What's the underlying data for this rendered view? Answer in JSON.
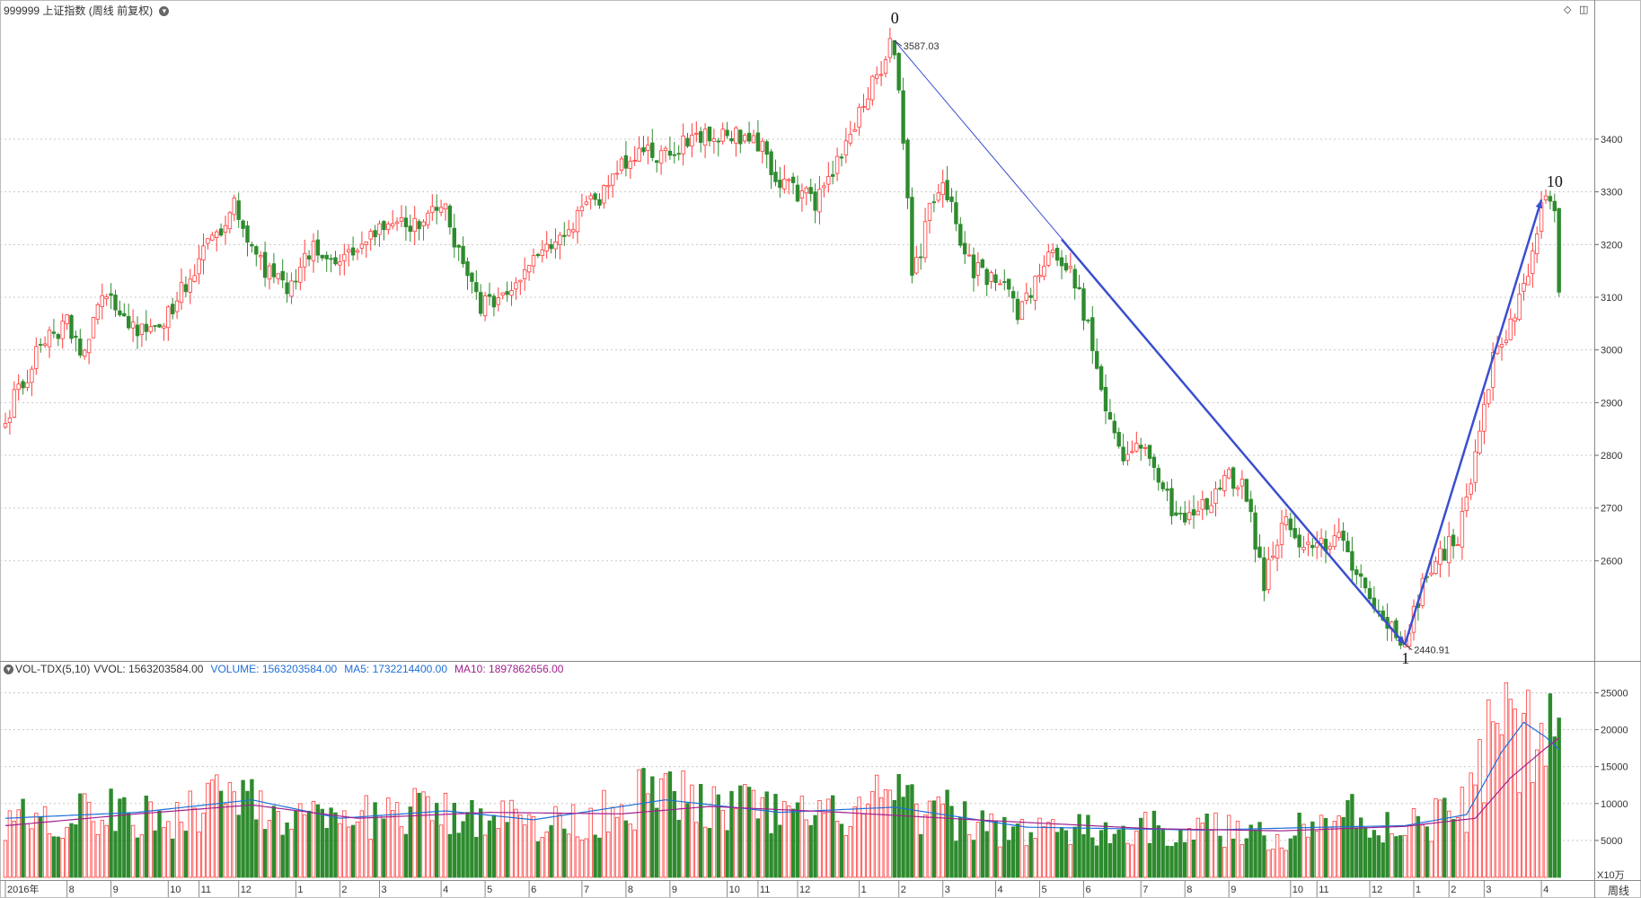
{
  "header": {
    "code": "999999",
    "name": "上证指数",
    "mode": "(周线 前复权)"
  },
  "vol_header": {
    "indicator": "VOL-TDX(5,10)",
    "vvol": "VVOL: 1563203584.00",
    "volume": "VOLUME: 1563203584.00",
    "ma5": "MA5: 1732214400.00",
    "ma10": "MA10: 1897862656.00"
  },
  "colors": {
    "up": "#ff3b3b",
    "down": "#2e8b2e",
    "trendline": "#3a4fcf",
    "ma5": "#1e6fd9",
    "ma10": "#a0208f",
    "grid": "#c8c8c8"
  },
  "period_label": "周线",
  "vol_unit_label": "X10万",
  "chart_data": [
    {
      "type": "candlestick",
      "title": "999999 上证指数 (周线 前复权)",
      "y_ticks": [
        2600,
        2700,
        2800,
        2900,
        3000,
        3100,
        3200,
        3300,
        3400
      ],
      "ylim": [
        2420,
        3630
      ],
      "x_labels": [
        {
          "i": 0,
          "text": "2016年"
        },
        {
          "i": 14,
          "text": "8"
        },
        {
          "i": 24,
          "text": "9"
        },
        {
          "i": 37,
          "text": "10"
        },
        {
          "i": 44,
          "text": "11"
        },
        {
          "i": 53,
          "text": "12"
        },
        {
          "i": 66,
          "text": "1"
        },
        {
          "i": 76,
          "text": "2"
        },
        {
          "i": 85,
          "text": "3"
        },
        {
          "i": 99,
          "text": "4"
        },
        {
          "i": 109,
          "text": "5"
        },
        {
          "i": 119,
          "text": "6"
        },
        {
          "i": 131,
          "text": "7"
        },
        {
          "i": 141,
          "text": "8"
        },
        {
          "i": 151,
          "text": "9"
        },
        {
          "i": 164,
          "text": "10"
        },
        {
          "i": 171,
          "text": "11"
        },
        {
          "i": 180,
          "text": "12"
        },
        {
          "i": 194,
          "text": "1"
        },
        {
          "i": 203,
          "text": "2"
        },
        {
          "i": 213,
          "text": "3"
        },
        {
          "i": 225,
          "text": "4"
        },
        {
          "i": 235,
          "text": "5"
        },
        {
          "i": 245,
          "text": "6"
        },
        {
          "i": 258,
          "text": "7"
        },
        {
          "i": 268,
          "text": "8"
        },
        {
          "i": 278,
          "text": "9"
        },
        {
          "i": 292,
          "text": "10"
        },
        {
          "i": 298,
          "text": "11"
        },
        {
          "i": 310,
          "text": "12"
        },
        {
          "i": 320,
          "text": "1"
        },
        {
          "i": 328,
          "text": "2"
        },
        {
          "i": 336,
          "text": "3"
        },
        {
          "i": 349,
          "text": "4"
        }
      ],
      "wave_labels": [
        {
          "text": "0",
          "i": 202,
          "price": 3620
        },
        {
          "text": "1",
          "i": 318,
          "price": 2405
        },
        {
          "text": "10",
          "i": 351,
          "price": 3310
        }
      ],
      "extreme_labels": [
        {
          "text": "3587.03",
          "i": 202,
          "price": 3587.03,
          "side": "right"
        },
        {
          "text": "2440.91",
          "i": 318,
          "price": 2440.91,
          "side": "right"
        }
      ],
      "trendlines": [
        {
          "from": {
            "i": 202,
            "price": 3587.03
          },
          "to": {
            "i": 318,
            "price": 2440.91
          },
          "width": 1
        },
        {
          "from": {
            "i": 240,
            "price": 3210
          },
          "to": {
            "i": 318,
            "price": 2440.91
          },
          "width": 2.5
        },
        {
          "from": {
            "i": 318,
            "price": 2440.91
          },
          "to": {
            "i": 349,
            "price": 3285
          },
          "width": 2.5
        }
      ],
      "price_path": [
        [
          0,
          2870
        ],
        [
          8,
          3010
        ],
        [
          14,
          3050
        ],
        [
          18,
          2980
        ],
        [
          22,
          3110
        ],
        [
          28,
          3040
        ],
        [
          34,
          3040
        ],
        [
          40,
          3110
        ],
        [
          46,
          3200
        ],
        [
          52,
          3270
        ],
        [
          58,
          3160
        ],
        [
          64,
          3120
        ],
        [
          70,
          3200
        ],
        [
          76,
          3160
        ],
        [
          82,
          3220
        ],
        [
          88,
          3250
        ],
        [
          94,
          3230
        ],
        [
          100,
          3280
        ],
        [
          104,
          3150
        ],
        [
          108,
          3080
        ],
        [
          112,
          3090
        ],
        [
          116,
          3120
        ],
        [
          120,
          3170
        ],
        [
          128,
          3230
        ],
        [
          136,
          3300
        ],
        [
          142,
          3370
        ],
        [
          148,
          3370
        ],
        [
          156,
          3400
        ],
        [
          164,
          3400
        ],
        [
          170,
          3410
        ],
        [
          176,
          3320
        ],
        [
          180,
          3300
        ],
        [
          184,
          3280
        ],
        [
          188,
          3340
        ],
        [
          192,
          3420
        ],
        [
          196,
          3480
        ],
        [
          200,
          3560
        ],
        [
          202,
          3587
        ],
        [
          204,
          3390
        ],
        [
          206,
          3150
        ],
        [
          208,
          3170
        ],
        [
          210,
          3290
        ],
        [
          214,
          3300
        ],
        [
          218,
          3170
        ],
        [
          222,
          3140
        ],
        [
          226,
          3140
        ],
        [
          230,
          3060
        ],
        [
          234,
          3130
        ],
        [
          238,
          3200
        ],
        [
          242,
          3150
        ],
        [
          246,
          3050
        ],
        [
          250,
          2880
        ],
        [
          254,
          2800
        ],
        [
          258,
          2830
        ],
        [
          262,
          2760
        ],
        [
          266,
          2680
        ],
        [
          270,
          2700
        ],
        [
          274,
          2710
        ],
        [
          278,
          2760
        ],
        [
          282,
          2730
        ],
        [
          286,
          2550
        ],
        [
          290,
          2680
        ],
        [
          294,
          2640
        ],
        [
          298,
          2620
        ],
        [
          302,
          2650
        ],
        [
          306,
          2600
        ],
        [
          310,
          2540
        ],
        [
          314,
          2480
        ],
        [
          318,
          2445
        ],
        [
          322,
          2560
        ],
        [
          326,
          2610
        ],
        [
          330,
          2650
        ],
        [
          334,
          2800
        ],
        [
          338,
          2990
        ],
        [
          342,
          3050
        ],
        [
          346,
          3150
        ],
        [
          349,
          3280
        ],
        [
          352,
          3270
        ],
        [
          353,
          3090
        ]
      ],
      "candle_count": 354
    },
    {
      "type": "bar",
      "title": "VOL-TDX(5,10)",
      "y_ticks": [
        5000,
        10000,
        15000,
        20000,
        25000
      ],
      "ylim": [
        0,
        27000
      ],
      "unit": "X10万",
      "volume_path": [
        [
          0,
          8200
        ],
        [
          10,
          8000
        ],
        [
          20,
          9000
        ],
        [
          30,
          8000
        ],
        [
          40,
          8500
        ],
        [
          50,
          12000
        ],
        [
          56,
          11500
        ],
        [
          62,
          8500
        ],
        [
          70,
          7500
        ],
        [
          76,
          6500
        ],
        [
          84,
          8500
        ],
        [
          92,
          9000
        ],
        [
          100,
          8500
        ],
        [
          110,
          9000
        ],
        [
          120,
          7000
        ],
        [
          130,
          7500
        ],
        [
          138,
          9500
        ],
        [
          146,
          11000
        ],
        [
          154,
          11000
        ],
        [
          162,
          9000
        ],
        [
          170,
          9500
        ],
        [
          178,
          8000
        ],
        [
          186,
          8000
        ],
        [
          194,
          9000
        ],
        [
          202,
          11000
        ],
        [
          206,
          9000
        ],
        [
          214,
          8500
        ],
        [
          222,
          7000
        ],
        [
          232,
          6500
        ],
        [
          242,
          6200
        ],
        [
          252,
          6000
        ],
        [
          262,
          6500
        ],
        [
          272,
          6500
        ],
        [
          282,
          6000
        ],
        [
          290,
          5800
        ],
        [
          298,
          7500
        ],
        [
          306,
          8500
        ],
        [
          312,
          7000
        ],
        [
          318,
          7200
        ],
        [
          324,
          8000
        ],
        [
          330,
          8200
        ],
        [
          334,
          12000
        ],
        [
          338,
          20000
        ],
        [
          340,
          26000
        ],
        [
          344,
          18000
        ],
        [
          348,
          18500
        ],
        [
          350,
          19000
        ],
        [
          353,
          15500
        ]
      ],
      "ma_series": [
        {
          "name": "MA5",
          "color_key": "ma5",
          "path": [
            [
              0,
              8000
            ],
            [
              30,
              8800
            ],
            [
              56,
              10500
            ],
            [
              76,
              8000
            ],
            [
              100,
              9000
            ],
            [
              120,
              7800
            ],
            [
              150,
              10500
            ],
            [
              176,
              8800
            ],
            [
              202,
              9500
            ],
            [
              232,
              6800
            ],
            [
              272,
              6400
            ],
            [
              300,
              6800
            ],
            [
              318,
              7000
            ],
            [
              332,
              8500
            ],
            [
              340,
              17000
            ],
            [
              345,
              21000
            ],
            [
              350,
              19000
            ],
            [
              353,
              17300
            ]
          ]
        },
        {
          "name": "MA10",
          "color_key": "ma10",
          "path": [
            [
              0,
              7000
            ],
            [
              30,
              8600
            ],
            [
              56,
              9800
            ],
            [
              80,
              8000
            ],
            [
              110,
              8800
            ],
            [
              140,
              8600
            ],
            [
              160,
              9600
            ],
            [
              190,
              8800
            ],
            [
              220,
              7800
            ],
            [
              260,
              6600
            ],
            [
              290,
              6300
            ],
            [
              318,
              6900
            ],
            [
              334,
              8000
            ],
            [
              342,
              13500
            ],
            [
              350,
              17500
            ],
            [
              353,
              18900
            ]
          ]
        }
      ]
    }
  ]
}
